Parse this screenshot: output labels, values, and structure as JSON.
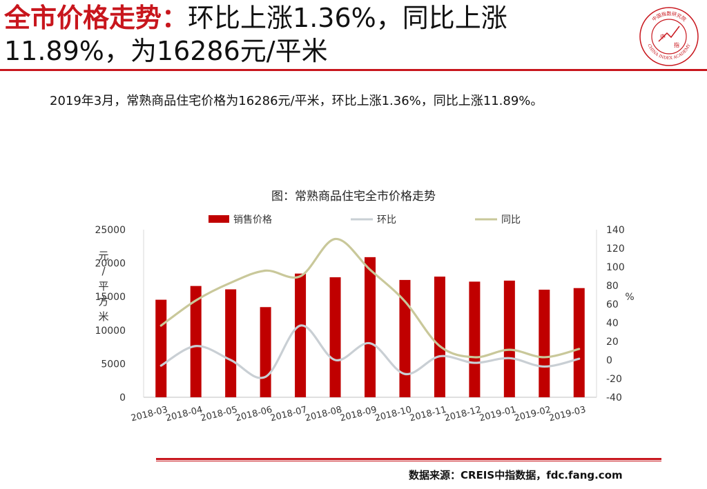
{
  "header": {
    "title_highlight": "全市价格走势：",
    "title_line1_rest": "环比上涨1.36%，同比上涨",
    "title_line2": "11.89%，为16286元/平米"
  },
  "logo": {
    "top_text": "中国指数研究院",
    "bottom_text": "CHINA INDEX ACADEMY",
    "inner_left": "中",
    "inner_right": "指"
  },
  "summary": "2019年3月，常熟商品住宅价格为16286元/平米，环比上涨1.36%，同比上涨11.89%。",
  "chart_title": "图：常熟商品住宅全市价格走势",
  "footer": {
    "source": "数据来源：CREIS中指数据，fdc.fang.com"
  },
  "colors": {
    "accent": "#c8161d",
    "bar": "#c00000",
    "mom_line": "#c9cfd4",
    "yoy_line": "#c9c89a"
  },
  "chart_data": {
    "type": "bar",
    "categories": [
      "2018-03",
      "2018-04",
      "2018-05",
      "2018-06",
      "2018-07",
      "2018-08",
      "2018-09",
      "2018-10",
      "2018-11",
      "2018-12",
      "2019-01",
      "2019-02",
      "2019-03"
    ],
    "series": [
      {
        "name": "销售价格",
        "type": "bar",
        "axis": "left",
        "values": [
          14550,
          16600,
          16100,
          13450,
          18450,
          17900,
          20900,
          17500,
          18000,
          17250,
          17400,
          16050,
          16286
        ]
      },
      {
        "name": "环比",
        "type": "line",
        "axis": "right",
        "values": [
          -6,
          15,
          0,
          -18,
          37,
          0,
          18,
          -15,
          4,
          -3,
          2,
          -7,
          1.36
        ]
      },
      {
        "name": "同比",
        "type": "line",
        "axis": "right",
        "values": [
          37,
          64,
          83,
          96,
          90,
          130,
          97,
          63,
          15,
          3,
          11,
          3,
          11.89
        ]
      }
    ],
    "ylabel_left": "元/平方米",
    "ylabel_right": "%",
    "ylim_left": [
      0,
      25000
    ],
    "yticks_left": [
      "0",
      "5000",
      "10000",
      "15000",
      "20000",
      "25000"
    ],
    "ylim_right": [
      -40,
      140
    ],
    "yticks_right": [
      "-40",
      "-20",
      "0",
      "20",
      "40",
      "60",
      "80",
      "100",
      "120",
      "140"
    ],
    "legend_position": "top",
    "grid": false
  }
}
